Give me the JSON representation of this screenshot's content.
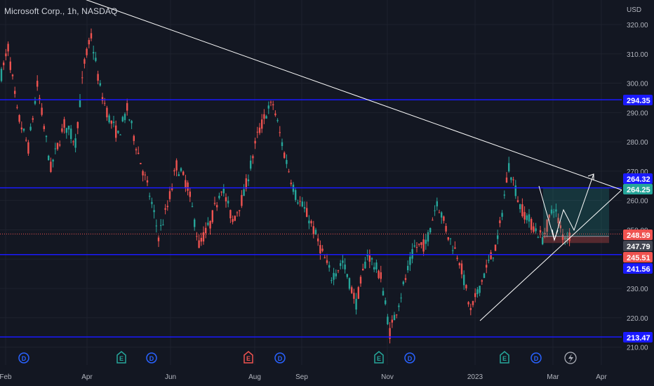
{
  "header": {
    "symbol": "Microsoft Corp.",
    "interval": "1h",
    "exchange": "NASDAQ"
  },
  "colors": {
    "bg": "#131722",
    "grid": "#1e222d",
    "text": "#b2b5be",
    "up": "#26a69a",
    "down": "#ef5350",
    "level": "#1a1aff",
    "trend": "#ffffff",
    "profit_zone": "rgba(38,166,154,0.22)",
    "loss_zone": "rgba(239,83,80,0.30)",
    "current_price": "#ef5350"
  },
  "chart_data": {
    "type": "candlestick",
    "currency": "USD",
    "y_ticks": [
      210,
      220,
      230,
      240,
      250,
      260,
      270,
      280,
      290,
      300,
      310,
      320
    ],
    "ylim": [
      208,
      324
    ],
    "x_labels": [
      "Feb",
      "Apr",
      "Jun",
      "Aug",
      "Sep",
      "Nov",
      "2023",
      "Mar",
      "Apr"
    ],
    "horizontal_levels": [
      294.35,
      264.32,
      241.56,
      213.47
    ],
    "price_labels": [
      {
        "value": 294.35,
        "text": "294.35",
        "kind": "level"
      },
      {
        "value": 264.32,
        "text": "264.32",
        "kind": "level"
      },
      {
        "value": 264.25,
        "text": "264.25",
        "kind": "target"
      },
      {
        "value": 248.59,
        "text": "248.59",
        "kind": "last"
      },
      {
        "value": 247.79,
        "text": "247.79",
        "kind": "entry"
      },
      {
        "value": 245.51,
        "text": "245.51",
        "kind": "stop"
      },
      {
        "value": 241.56,
        "text": "241.56",
        "kind": "level"
      },
      {
        "value": 213.47,
        "text": "213.47",
        "kind": "level"
      }
    ],
    "last_price": 248.59,
    "position": {
      "side": "long",
      "entry": 247.79,
      "target": 264.25,
      "stop": 245.51
    },
    "price_path": [
      [
        "Feb",
        303
      ],
      [
        "Feb",
        312
      ],
      [
        "Feb",
        290
      ],
      [
        "Feb",
        278
      ],
      [
        "Feb",
        299
      ],
      [
        "Feb",
        271
      ],
      [
        "Feb",
        286
      ],
      [
        "Feb",
        280
      ],
      [
        "Apr",
        307
      ],
      [
        "Apr",
        316
      ],
      [
        "Apr",
        298
      ],
      [
        "Apr",
        288
      ],
      [
        "Apr",
        282
      ],
      [
        "Apr",
        291
      ],
      [
        "Apr",
        276
      ],
      [
        "Jun",
        262
      ],
      [
        "Jun",
        248
      ],
      [
        "Jun",
        258
      ],
      [
        "Jun",
        272
      ],
      [
        "Jun",
        265
      ],
      [
        "Jun",
        245
      ],
      [
        "Jun",
        252
      ],
      [
        "Jun",
        265
      ],
      [
        "Jun",
        253
      ],
      [
        "Aug",
        262
      ],
      [
        "Aug",
        282
      ],
      [
        "Aug",
        290
      ],
      [
        "Aug",
        293
      ],
      [
        "Sep",
        276
      ],
      [
        "Sep",
        262
      ],
      [
        "Sep",
        254
      ],
      [
        "Sep",
        244
      ],
      [
        "Sep",
        234
      ],
      [
        "Sep",
        239
      ],
      [
        "Nov",
        225
      ],
      [
        "Nov",
        242
      ],
      [
        "Nov",
        234
      ],
      [
        "Nov",
        215
      ],
      [
        "Nov",
        228
      ],
      [
        "Nov",
        244
      ],
      [
        "Nov",
        245
      ],
      [
        "Nov",
        260
      ],
      [
        "Nov",
        248
      ],
      [
        "2023",
        240
      ],
      [
        "2023",
        222
      ],
      [
        "2023",
        235
      ],
      [
        "2023",
        246
      ],
      [
        "2023",
        272
      ],
      [
        "2023",
        258
      ],
      [
        "Mar",
        252
      ],
      [
        "Mar",
        247
      ],
      [
        "Mar",
        258
      ],
      [
        "Mar",
        248
      ]
    ],
    "events": [
      {
        "label": "D",
        "kind": "dividend"
      },
      {
        "label": "E",
        "kind": "earnings"
      },
      {
        "label": "D",
        "kind": "dividend"
      },
      {
        "label": "E",
        "kind": "earnings"
      },
      {
        "label": "D",
        "kind": "dividend"
      },
      {
        "label": "E",
        "kind": "earnings"
      },
      {
        "label": "D",
        "kind": "dividend"
      },
      {
        "label": "E",
        "kind": "earnings"
      },
      {
        "label": "D",
        "kind": "dividend"
      }
    ],
    "grid": true
  }
}
